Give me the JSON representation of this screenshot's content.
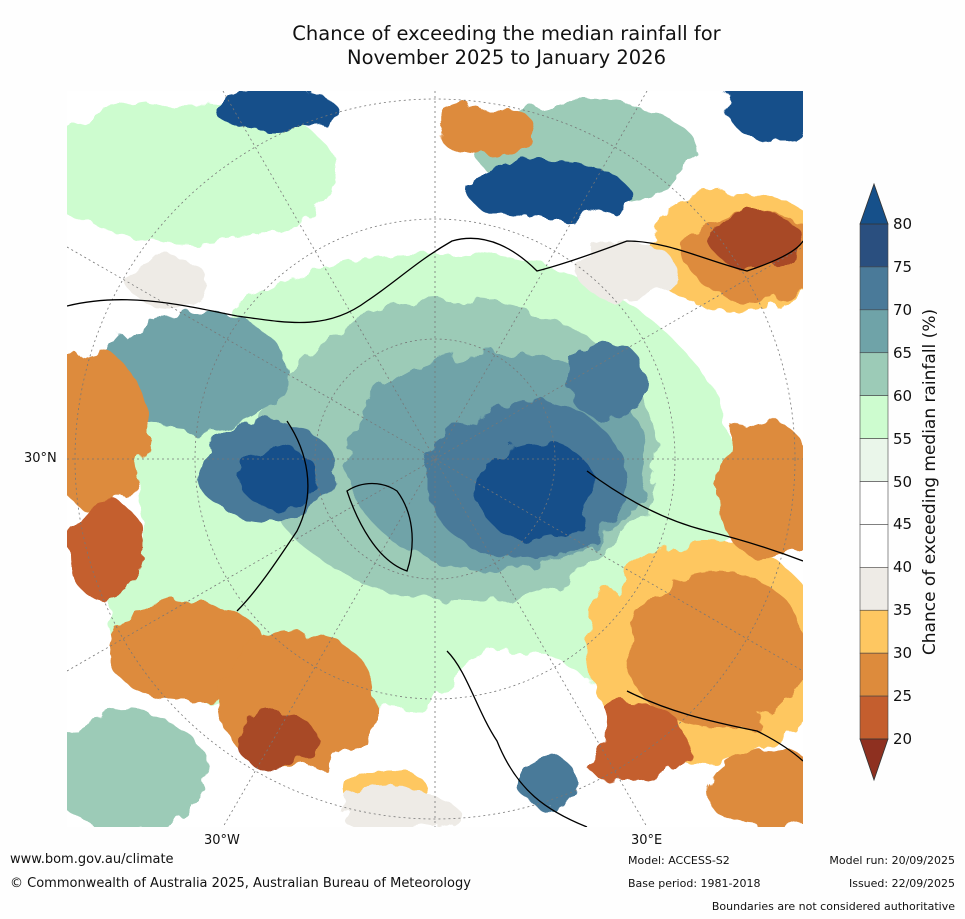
{
  "title_line1": "Chance of exceeding the median rainfall for",
  "title_line2": "November 2025 to January 2026",
  "map": {
    "latitude_label": "30°N",
    "longitude_labels": [
      "30°W",
      "30°E"
    ]
  },
  "colorbar": {
    "label": "Chance of exceeding median rainfall (%)",
    "ticks": [
      "80",
      "75",
      "70",
      "65",
      "60",
      "55",
      "50",
      "45",
      "40",
      "35",
      "30",
      "25",
      "20"
    ],
    "colors": [
      "#2a4f7f",
      "#4a7a99",
      "#6fa3a8",
      "#9ccbb7",
      "#cdfccf",
      "#eaf6ea",
      "#ffffff",
      "#ffffff",
      "#eeebe6",
      "#fec761",
      "#dd8b3c",
      "#c45e2e",
      "#a84828",
      "#8e3020"
    ],
    "top_extend_color": "#16508a",
    "bottom_extend_color": "#8e3020"
  },
  "footer": {
    "website": "www.bom.gov.au/climate",
    "copyright": "© Commonwealth of Australia 2025, Australian Bureau of Meteorology",
    "model": "Model: ACCESS-S2",
    "base_period": "Base period: 1981-2018",
    "model_run": "Model run: 20/09/2025",
    "issued": "Issued: 22/09/2025",
    "disclaimer": "Boundaries are not considered authoritative"
  }
}
